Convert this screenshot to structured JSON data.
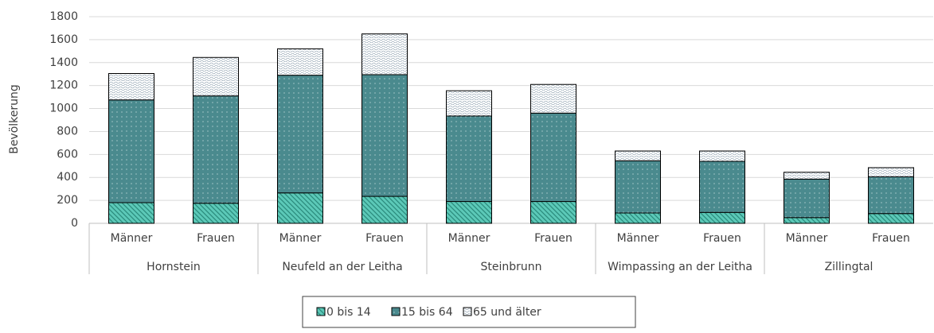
{
  "chart_data": {
    "type": "stacked_bar",
    "y_axis_label": "Bevölkerung",
    "groups": [
      "Hornstein",
      "Neufeld an der Leitha",
      "Steinbrunn",
      "Wimpassing an der Leitha",
      "Zillingtal"
    ],
    "categories": [
      "Männer",
      "Frauen",
      "Männer",
      "Frauen",
      "Männer",
      "Frauen",
      "Männer",
      "Frauen",
      "Männer",
      "Frauen"
    ],
    "series": [
      {
        "name": "0 bis 14",
        "color": "#5cc9b8",
        "values": [
          180,
          175,
          265,
          235,
          190,
          190,
          90,
          95,
          50,
          85
        ]
      },
      {
        "name": "15 bis 64",
        "color": "#4a8a8e",
        "values": [
          895,
          935,
          1025,
          1060,
          745,
          770,
          455,
          445,
          335,
          320
        ]
      },
      {
        "name": "65 und älter",
        "color": "#ffffff",
        "values": [
          230,
          335,
          230,
          355,
          220,
          250,
          85,
          90,
          60,
          80
        ]
      }
    ],
    "ylim": [
      0,
      1800
    ],
    "yticks": [
      0,
      200,
      400,
      600,
      800,
      1000,
      1200,
      1400,
      1600,
      1800
    ],
    "grid": true,
    "legend": "bottom"
  }
}
